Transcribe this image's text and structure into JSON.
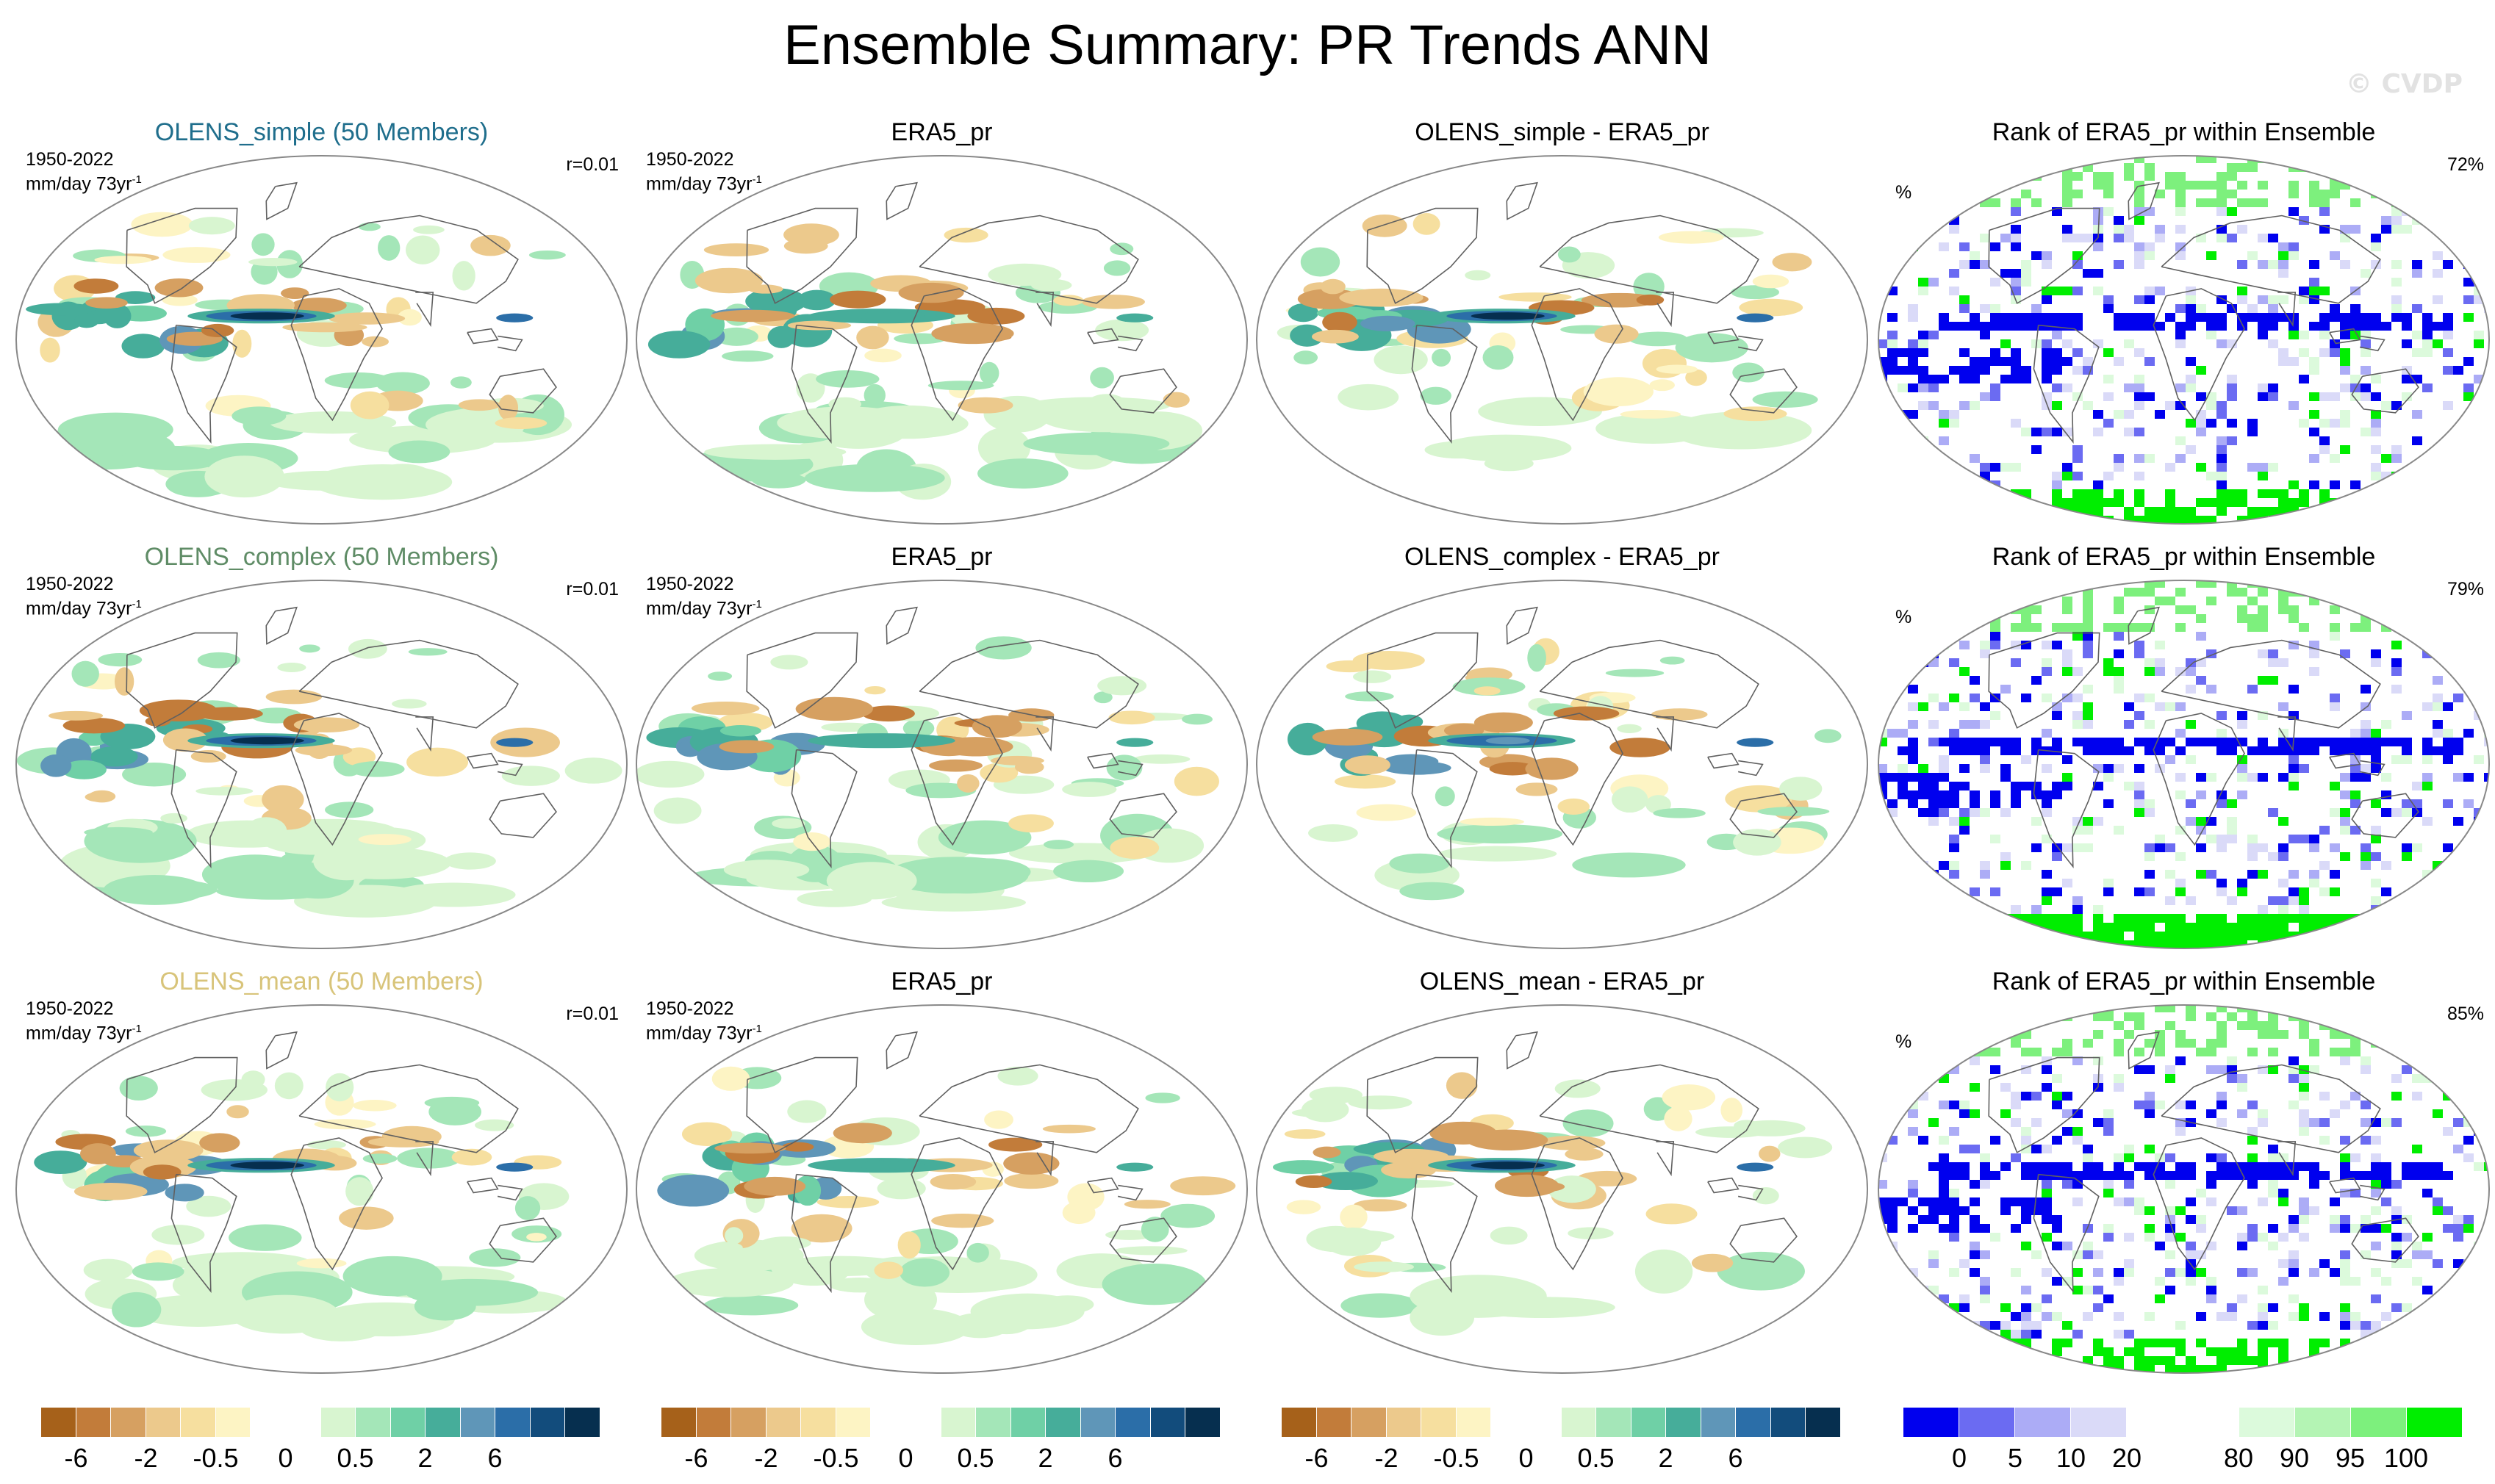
{
  "title": "Ensemble Summary: PR Trends ANN",
  "watermark": "© CVDP",
  "rows": [
    {
      "ens_title": "OLENS_simple (50 Members)",
      "ens_color": "#1f6e8c",
      "period": "1950-2022",
      "units": "mm/day 73yr",
      "units_exp": "-1",
      "corr": "r=0.01",
      "obs_title": "ERA5_pr",
      "diff_title": "OLENS_simple - ERA5_pr",
      "rank_title": "Rank of ERA5_pr within Ensemble",
      "rank_unit": "%",
      "rank_pct": "72%"
    },
    {
      "ens_title": "OLENS_complex (50 Members)",
      "ens_color": "#5f8c66",
      "period": "1950-2022",
      "units": "mm/day 73yr",
      "units_exp": "-1",
      "corr": "r=0.01",
      "obs_title": "ERA5_pr",
      "diff_title": "OLENS_complex - ERA5_pr",
      "rank_title": "Rank of ERA5_pr within Ensemble",
      "rank_unit": "%",
      "rank_pct": "79%"
    },
    {
      "ens_title": "OLENS_mean (50 Members)",
      "ens_color": "#d8c47a",
      "period": "1950-2022",
      "units": "mm/day 73yr",
      "units_exp": "-1",
      "corr": "r=0.01",
      "obs_title": "ERA5_pr",
      "diff_title": "OLENS_mean - ERA5_pr",
      "rank_title": "Rank of ERA5_pr within Ensemble",
      "rank_unit": "%",
      "rank_pct": "85%"
    }
  ],
  "colorbars": {
    "trend": {
      "colors": [
        "#a6611a",
        "#c27c3a",
        "#d6a061",
        "#ecc98c",
        "#f6df9f",
        "#fdf4c4",
        "#ffffff",
        "#ffffff",
        "#d8f5d0",
        "#a4e6b8",
        "#6fd0a6",
        "#46ad9a",
        "#5f96b8",
        "#2b6ea8",
        "#124c7c",
        "#062f4f"
      ],
      "labels": [
        "-6",
        "-2",
        "-0.5",
        "0",
        "0.5",
        "2",
        "6"
      ],
      "label_bounds": [
        1,
        3,
        5,
        7,
        9,
        11,
        13
      ]
    },
    "rank": {
      "colors": [
        "#0000ee",
        "#6b6bf2",
        "#acacf6",
        "#dadaf8",
        "#ffffff",
        "#ffffff",
        "#dcfadc",
        "#b4f4b4",
        "#7df07d",
        "#00ee00"
      ],
      "labels": [
        "0",
        "5",
        "10",
        "20",
        "80",
        "90",
        "95",
        "100"
      ],
      "label_bounds": [
        1,
        2,
        3,
        4,
        6,
        7,
        8,
        9
      ]
    }
  },
  "colors": {
    "land_outline": "#606060",
    "map_border": "#888888"
  }
}
